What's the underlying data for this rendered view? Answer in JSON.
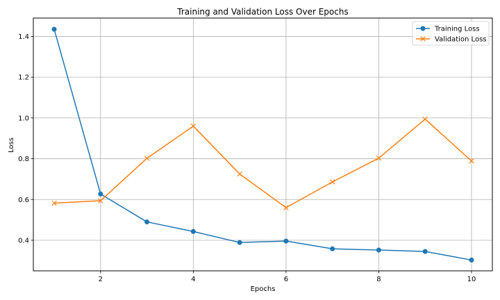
{
  "chart_data": {
    "type": "line",
    "title": "Training and Validation Loss Over Epochs",
    "xlabel": "Epochs",
    "ylabel": "Loss",
    "x": [
      1,
      2,
      3,
      4,
      5,
      6,
      7,
      8,
      9,
      10
    ],
    "xticks": [
      2,
      4,
      6,
      8,
      10
    ],
    "yticks": [
      0.4,
      0.6,
      0.8,
      1.0,
      1.2,
      1.4
    ],
    "xlim": [
      0.55,
      10.45
    ],
    "ylim": [
      0.25,
      1.49
    ],
    "grid": true,
    "legend_position": "top-right",
    "series": [
      {
        "name": "Training Loss",
        "color": "#1f77b4",
        "marker": "circle",
        "values": [
          1.435,
          0.627,
          0.49,
          0.443,
          0.389,
          0.396,
          0.358,
          0.352,
          0.345,
          0.303
        ]
      },
      {
        "name": "Validation Loss",
        "color": "#ff7f0e",
        "marker": "x",
        "values": [
          0.582,
          0.594,
          0.802,
          0.96,
          0.725,
          0.56,
          0.686,
          0.803,
          0.994,
          0.789
        ]
      }
    ]
  }
}
